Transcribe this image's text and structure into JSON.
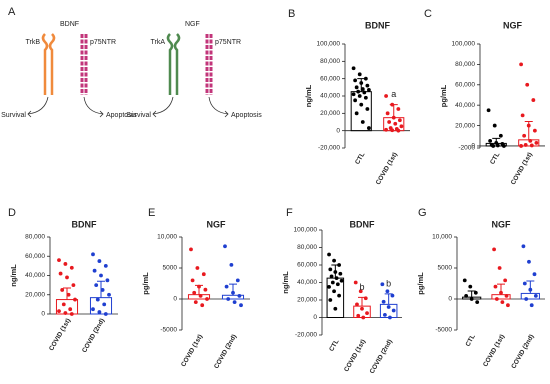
{
  "panel_a": {
    "letter": "A",
    "left": {
      "title": "BDNF",
      "receptor1": "TrkB",
      "receptor2": "p75NTR",
      "out1": "Survival",
      "out2": "Apoptosis"
    },
    "right": {
      "title": "NGF",
      "receptor1": "TrkA",
      "receptor2": "p75NTR",
      "out1": "Survival",
      "out2": "Apoptosis"
    }
  },
  "chart_data": [
    {
      "type": "bar",
      "panel": "B",
      "title": "BDNF",
      "ylabel": "ng/mL",
      "categories": [
        "CTL",
        "COVID (1st)"
      ],
      "colors": [
        "#000000",
        "#e8191f"
      ],
      "values": [
        45000,
        15000
      ],
      "errors": [
        15000,
        15000
      ],
      "annotations": [
        null,
        "a"
      ],
      "points": [
        [
          72000,
          65000,
          60000,
          58000,
          55000,
          52000,
          50000,
          48000,
          47000,
          45000,
          44000,
          42000,
          40000,
          38000,
          35000,
          30000,
          25000,
          20000,
          10000,
          3000
        ],
        [
          40000,
          30000,
          25000,
          20000,
          15000,
          12000,
          10000,
          8000,
          5000,
          3000,
          2000,
          1000,
          500,
          0
        ]
      ],
      "ylim": [
        -20000,
        100000
      ],
      "yticks": [
        {
          "value": -20000,
          "label": "-20,000"
        },
        0,
        {
          "value": 20000,
          "label": "20,000"
        },
        {
          "value": 40000,
          "label": "40,000"
        },
        {
          "value": 60000,
          "label": "60,000"
        },
        {
          "value": 80000,
          "label": "80,000"
        },
        {
          "value": 100000,
          "label": "100,000"
        }
      ]
    },
    {
      "type": "bar",
      "panel": "C",
      "title": "NGF",
      "ylabel": "pg/mL",
      "categories": [
        "CTL",
        "COVID (1st)"
      ],
      "colors": [
        "#000000",
        "#e8191f"
      ],
      "values": [
        2500,
        6000
      ],
      "errors": [
        5000,
        18000
      ],
      "points": [
        [
          35000,
          20000,
          10000,
          5000,
          3000,
          2000,
          1000,
          500,
          0,
          0
        ],
        [
          80000,
          60000,
          45000,
          30000,
          20000,
          15000,
          10000,
          5000,
          3000,
          1000,
          500,
          0
        ]
      ],
      "ylim": [
        -2000,
        100000
      ],
      "yticks": [
        -2000,
        0,
        {
          "value": 20000,
          "label": "20,000"
        },
        {
          "value": 40000,
          "label": "40,000"
        },
        {
          "value": 60000,
          "label": "60,000"
        },
        {
          "value": 80000,
          "label": "80,000"
        },
        {
          "value": 100000,
          "label": "100,000"
        }
      ]
    },
    {
      "type": "bar",
      "panel": "D",
      "title": "BDNF",
      "ylabel": "ng/mL",
      "categories": [
        "COVID (1st)",
        "COVID (2nd)"
      ],
      "colors": [
        "#e8191f",
        "#1f3fd0"
      ],
      "values": [
        15000,
        17000
      ],
      "errors": [
        12000,
        17000
      ],
      "points": [
        [
          56000,
          52000,
          48000,
          42000,
          38000,
          30000,
          25000,
          20000,
          15000,
          10000,
          5000,
          3000,
          1000,
          0
        ],
        [
          62000,
          55000,
          50000,
          45000,
          40000,
          35000,
          30000,
          25000,
          20000,
          15000,
          10000,
          5000,
          2000,
          0
        ]
      ],
      "ylim": [
        0,
        80000
      ],
      "yticks": [
        0,
        {
          "value": 20000,
          "label": "20,000"
        },
        {
          "value": 40000,
          "label": "40,000"
        },
        {
          "value": 60000,
          "label": "60,000"
        },
        {
          "value": 80000,
          "label": "80,000"
        }
      ]
    },
    {
      "type": "bar",
      "panel": "E",
      "title": "NGF",
      "ylabel": "pg/mL",
      "categories": [
        "COVID (1st)",
        "COVID (2nd)"
      ],
      "colors": [
        "#e8191f",
        "#1f3fd0"
      ],
      "values": [
        700,
        600
      ],
      "errors": [
        1500,
        1800
      ],
      "points": [
        [
          8000,
          5000,
          4000,
          3000,
          2000,
          1500,
          1000,
          500,
          0,
          -500,
          -1000
        ],
        [
          8500,
          5500,
          3000,
          2000,
          1000,
          500,
          0,
          -500,
          -1000
        ]
      ],
      "ylim": [
        -5000,
        10000
      ],
      "yticks": [
        -5000,
        0,
        5000,
        {
          "value": 10000,
          "label": "10,000"
        }
      ]
    },
    {
      "type": "bar",
      "panel": "F",
      "title": "BDNF",
      "ylabel": "ng/mL",
      "categories": [
        "CTL",
        "COVID (1st)",
        "COVID (2nd)"
      ],
      "colors": [
        "#000000",
        "#e8191f",
        "#1f3fd0"
      ],
      "values": [
        45000,
        13000,
        15000
      ],
      "errors": [
        15000,
        10000,
        12000
      ],
      "annotations": [
        null,
        "b",
        "b"
      ],
      "points": [
        [
          72000,
          65000,
          60000,
          55000,
          52000,
          50000,
          47000,
          45000,
          42000,
          40000,
          38000,
          35000,
          30000,
          25000,
          20000,
          10000
        ],
        [
          40000,
          30000,
          22000,
          15000,
          10000,
          5000,
          2000,
          0
        ],
        [
          38000,
          30000,
          25000,
          18000,
          12000,
          8000,
          3000,
          0
        ]
      ],
      "ylim": [
        -20000,
        100000
      ],
      "yticks": [
        {
          "value": -20000,
          "label": "-20,000"
        },
        0,
        {
          "value": 20000,
          "label": "20,000"
        },
        {
          "value": 40000,
          "label": "40,000"
        },
        {
          "value": 60000,
          "label": "60,000"
        },
        {
          "value": 80000,
          "label": "80,000"
        },
        {
          "value": 100000,
          "label": "100,000"
        }
      ]
    },
    {
      "type": "bar",
      "panel": "G",
      "title": "NGF",
      "ylabel": "pg/mL",
      "categories": [
        "CTL",
        "COVID (1st)",
        "COVID (2nd)"
      ],
      "colors": [
        "#000000",
        "#e8191f",
        "#1f3fd0"
      ],
      "values": [
        300,
        700,
        900
      ],
      "errors": [
        1000,
        1700,
        2000
      ],
      "points": [
        [
          3000,
          2000,
          1000,
          500,
          0,
          -500
        ],
        [
          8000,
          5000,
          3000,
          2000,
          1000,
          500,
          0,
          -500,
          -1000
        ],
        [
          8500,
          6000,
          4000,
          2500,
          1500,
          500,
          0,
          -1000
        ]
      ],
      "ylim": [
        -5000,
        10000
      ],
      "yticks": [
        -5000,
        0,
        5000,
        {
          "value": 10000,
          "label": "10,000"
        }
      ]
    }
  ]
}
